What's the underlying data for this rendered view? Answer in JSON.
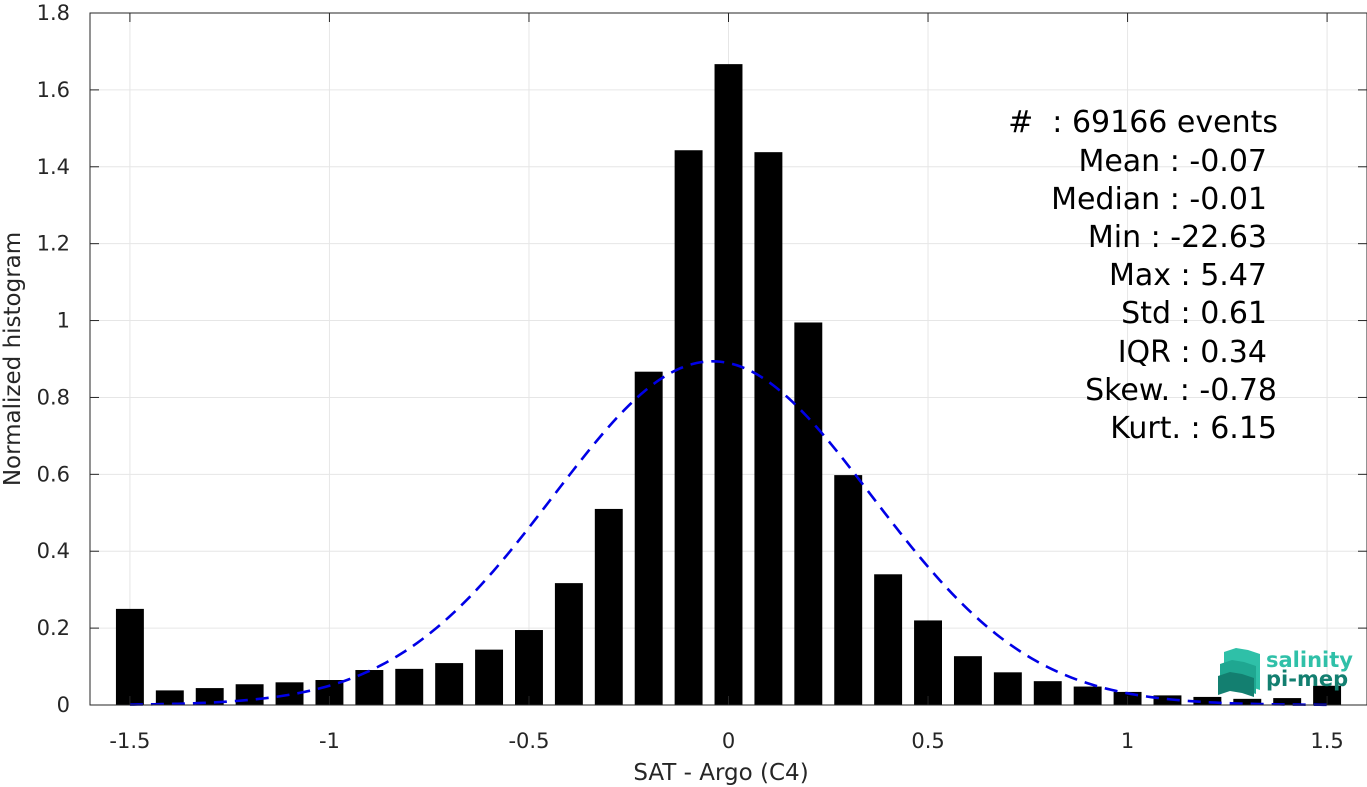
{
  "chart_data": {
    "type": "bar",
    "title": "",
    "xlabel": "SAT - Argo (C4)",
    "ylabel": "Normalized histogram",
    "xlim": [
      -1.6,
      1.6
    ],
    "ylim": [
      0,
      1.8
    ],
    "grid": true,
    "xticks": [
      -1.5,
      -1,
      -0.5,
      0,
      0.5,
      1,
      1.5
    ],
    "xtick_labels": [
      "-1.5",
      "-1",
      "-0.5",
      "0",
      "0.5",
      "1",
      "1.5"
    ],
    "yticks": [
      0,
      0.2,
      0.4,
      0.6,
      0.8,
      1,
      1.2,
      1.4,
      1.6,
      1.8
    ],
    "ytick_labels": [
      "0",
      "0.2",
      "0.4",
      "0.6",
      "0.8",
      "1",
      "1.2",
      "1.4",
      "1.6",
      "1.8"
    ],
    "bar_width": 0.07,
    "bars": {
      "x": [
        -1.5,
        -1.4,
        -1.3,
        -1.2,
        -1.1,
        -1.0,
        -0.9,
        -0.8,
        -0.7,
        -0.6,
        -0.5,
        -0.4,
        -0.3,
        -0.2,
        -0.1,
        0.0,
        0.1,
        0.2,
        0.3,
        0.4,
        0.5,
        0.6,
        0.7,
        0.8,
        0.9,
        1.0,
        1.1,
        1.2,
        1.3,
        1.4,
        1.5
      ],
      "values": [
        0.25,
        0.038,
        0.044,
        0.054,
        0.059,
        0.065,
        0.091,
        0.094,
        0.109,
        0.144,
        0.195,
        0.317,
        0.51,
        0.867,
        1.443,
        1.667,
        1.438,
        0.995,
        0.598,
        0.34,
        0.22,
        0.127,
        0.085,
        0.062,
        0.048,
        0.034,
        0.025,
        0.021,
        0.016,
        0.018,
        0.05
      ],
      "color": "#000000"
    },
    "fit_curve": {
      "style": "dashed",
      "color": "#0000e6",
      "mean": -0.04,
      "std": 0.4,
      "peak": 0.894,
      "x_range": [
        -1.5,
        1.5
      ]
    },
    "annotations": [
      "#  : 69166 events",
      "Mean : -0.07",
      "Median : -0.01",
      "Min : -22.63",
      "Max : 5.47",
      "Std : 0.61",
      "IQR : 0.34",
      "Skew. : -0.78",
      "Kurt. : 6.15"
    ]
  },
  "logo": {
    "line1": "salinity",
    "line2": "pi-mep",
    "color_light": "#2fc0a8",
    "color_dark": "#137f70"
  }
}
